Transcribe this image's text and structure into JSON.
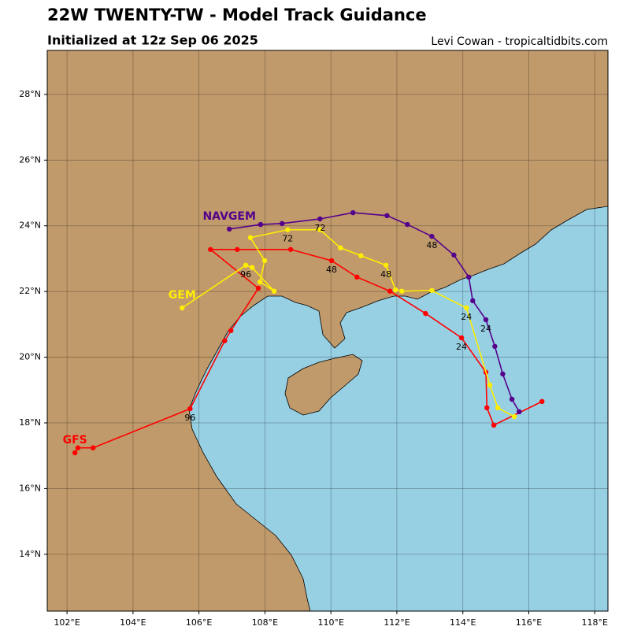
{
  "chart_data": {
    "type": "track-map",
    "title": "22W TWENTY-TW - Model Track Guidance",
    "subtitle": "Initialized at 12z Sep 06 2025",
    "credit": "Levi Cowan - tropicaltidbits.com",
    "xlim": [
      101.4,
      118.4
    ],
    "ylim": [
      12.27,
      29.34
    ],
    "xticks": [
      {
        "value": 102,
        "label": "102°E"
      },
      {
        "value": 104,
        "label": "104°E"
      },
      {
        "value": 106,
        "label": "106°E"
      },
      {
        "value": 108,
        "label": "108°E"
      },
      {
        "value": 110,
        "label": "110°E"
      },
      {
        "value": 112,
        "label": "112°E"
      },
      {
        "value": 114,
        "label": "114°E"
      },
      {
        "value": 116,
        "label": "116°E"
      },
      {
        "value": 118,
        "label": "118°E"
      }
    ],
    "yticks": [
      {
        "value": 14,
        "label": "14°N"
      },
      {
        "value": 16,
        "label": "16°N"
      },
      {
        "value": 18,
        "label": "18°N"
      },
      {
        "value": 20,
        "label": "20°N"
      },
      {
        "value": 22,
        "label": "22°N"
      },
      {
        "value": 24,
        "label": "24°N"
      },
      {
        "value": 26,
        "label": "26°N"
      },
      {
        "value": 28,
        "label": "28°N"
      }
    ],
    "grid": true,
    "series": [
      {
        "name": "GFS",
        "color": "#ff0000",
        "x": [
          116.4,
          114.94,
          114.73,
          114.7,
          113.96,
          112.87,
          111.79,
          110.79,
          110.02,
          108.78,
          107.16,
          106.35,
          107.8,
          106.97,
          106.78,
          105.73,
          102.79,
          102.33,
          102.24
        ],
        "values": [
          18.65,
          17.93,
          18.46,
          19.54,
          20.59,
          21.33,
          22.01,
          22.44,
          22.94,
          23.28,
          23.28,
          23.28,
          22.1,
          20.81,
          20.5,
          18.43,
          17.24,
          17.24,
          17.09
        ],
        "point_labels": [
          null,
          null,
          null,
          null,
          24,
          null,
          null,
          null,
          48,
          null,
          null,
          null,
          null,
          null,
          null,
          96,
          null,
          null,
          null
        ]
      },
      {
        "name": "GEM",
        "color": "#ffee00",
        "x": [
          115.56,
          115.06,
          114.82,
          114.11,
          113.06,
          112.15,
          111.96,
          111.67,
          110.91,
          110.29,
          109.67,
          108.69,
          107.56,
          107.99,
          107.85,
          108.28,
          107.61,
          107.42,
          105.49
        ],
        "values": [
          18.19,
          18.46,
          19.15,
          21.5,
          22.03,
          22.01,
          22.05,
          22.8,
          23.09,
          23.33,
          23.88,
          23.88,
          23.64,
          22.94,
          22.29,
          22.01,
          22.73,
          22.8,
          21.5
        ],
        "point_labels": [
          null,
          null,
          null,
          24,
          null,
          null,
          null,
          48,
          null,
          null,
          null,
          72,
          null,
          null,
          null,
          null,
          null,
          96,
          null
        ]
      },
      {
        "name": "NAVGEM",
        "color": "#55008c",
        "x": [
          115.71,
          115.49,
          115.21,
          114.97,
          114.7,
          114.3,
          114.18,
          113.73,
          113.06,
          112.32,
          111.7,
          110.67,
          109.67,
          108.52,
          107.87,
          106.92
        ],
        "values": [
          18.34,
          18.72,
          19.49,
          20.33,
          21.14,
          21.72,
          22.44,
          23.11,
          23.68,
          24.04,
          24.31,
          24.4,
          24.21,
          24.07,
          24.04,
          23.9
        ],
        "point_labels": [
          null,
          null,
          null,
          null,
          24,
          null,
          null,
          null,
          48,
          null,
          null,
          null,
          72,
          null,
          null,
          null
        ]
      }
    ]
  }
}
